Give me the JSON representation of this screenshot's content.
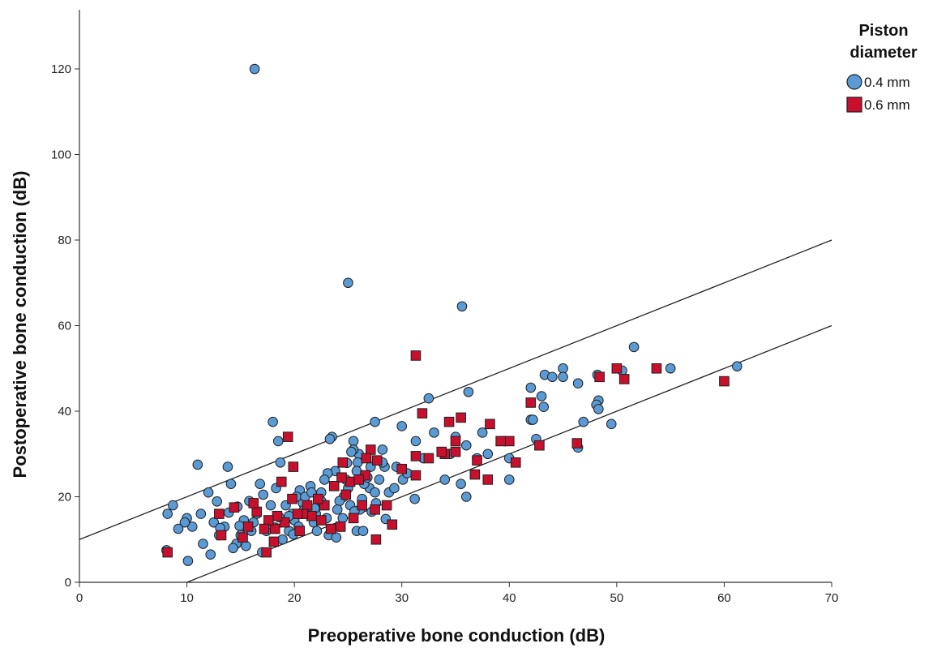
{
  "chart_data": {
    "type": "scatter",
    "title": "",
    "xlabel": "Preoperative bone conduction (dB)",
    "ylabel": "Postoperative bone conduction (dB)",
    "xlim": [
      0,
      70
    ],
    "ylim": [
      0,
      130
    ],
    "xticks": [
      0,
      10,
      20,
      30,
      40,
      50,
      60,
      70
    ],
    "yticks": [
      0,
      20,
      40,
      60,
      80,
      100,
      120
    ],
    "grid": false,
    "legend": {
      "title_line1": "Piston",
      "title_line2": "diameter",
      "placement": "top-right outside"
    },
    "reference_lines": [
      {
        "slope": 1,
        "intercept": 10,
        "from_x": 0,
        "to_x": 70
      },
      {
        "slope": 1,
        "intercept": -10,
        "from_x": 10,
        "to_x": 70
      }
    ],
    "series": [
      {
        "name": "0.4 mm",
        "marker": "circle",
        "color": "#5b9bd5",
        "stroke": "#1f1f1f",
        "points": [
          [
            16.3,
            120
          ],
          [
            25,
            70
          ],
          [
            35.6,
            64.5
          ],
          [
            51.6,
            55
          ],
          [
            55,
            50
          ],
          [
            61.2,
            50.5
          ],
          [
            48.2,
            48.5
          ],
          [
            50.5,
            49.5
          ],
          [
            45,
            50
          ],
          [
            45,
            48
          ],
          [
            43.3,
            48.5
          ],
          [
            44,
            48
          ],
          [
            46.4,
            46.5
          ],
          [
            48.3,
            42.5
          ],
          [
            48.1,
            41.5
          ],
          [
            48.3,
            40.5
          ],
          [
            49.5,
            37
          ],
          [
            46.9,
            37.5
          ],
          [
            42,
            45.5
          ],
          [
            43,
            43.5
          ],
          [
            42,
            38
          ],
          [
            42.2,
            38
          ],
          [
            43.2,
            41
          ],
          [
            42.5,
            33.5
          ],
          [
            46.4,
            31.5
          ],
          [
            36.2,
            44.5
          ],
          [
            32.5,
            43
          ],
          [
            37.5,
            35
          ],
          [
            35,
            34
          ],
          [
            34.5,
            30
          ],
          [
            36,
            32
          ],
          [
            40,
            29
          ],
          [
            39.5,
            33
          ],
          [
            40,
            24
          ],
          [
            38,
            30
          ],
          [
            36,
            20
          ],
          [
            37,
            29
          ],
          [
            35.5,
            23
          ],
          [
            34,
            24
          ],
          [
            33,
            35
          ],
          [
            32,
            29
          ],
          [
            31.3,
            33
          ],
          [
            31.2,
            19.5
          ],
          [
            30,
            36.5
          ],
          [
            30.1,
            24
          ],
          [
            30.5,
            25.5
          ],
          [
            29.5,
            27
          ],
          [
            28.2,
            31
          ],
          [
            27.5,
            37.5
          ],
          [
            28.4,
            27
          ],
          [
            27.9,
            24
          ],
          [
            27,
            22
          ],
          [
            27.5,
            21
          ],
          [
            26.5,
            23
          ],
          [
            26.3,
            19.5
          ],
          [
            26,
            30
          ],
          [
            25.9,
            28
          ],
          [
            25.8,
            26
          ],
          [
            25.5,
            33
          ],
          [
            25.5,
            31
          ],
          [
            25.3,
            30.5
          ],
          [
            25,
            22
          ],
          [
            24.8,
            24
          ],
          [
            24.6,
            20
          ],
          [
            24.2,
            19
          ],
          [
            23.8,
            26
          ],
          [
            23.5,
            34
          ],
          [
            23.3,
            33.5
          ],
          [
            23.1,
            25.5
          ],
          [
            22.8,
            24
          ],
          [
            22.5,
            21
          ],
          [
            22.3,
            18
          ],
          [
            22,
            16
          ],
          [
            21.8,
            14
          ],
          [
            21.5,
            22.5
          ],
          [
            21.2,
            17
          ],
          [
            20.8,
            18.5
          ],
          [
            20.5,
            21.5
          ],
          [
            20.2,
            20
          ],
          [
            20,
            14.5
          ],
          [
            19.8,
            16
          ],
          [
            19.5,
            12
          ],
          [
            19.2,
            18
          ],
          [
            18.9,
            10
          ],
          [
            18.7,
            28
          ],
          [
            18.5,
            33
          ],
          [
            18.3,
            22
          ],
          [
            18,
            37.5
          ],
          [
            17.8,
            18
          ],
          [
            17.4,
            12
          ],
          [
            17,
            7
          ],
          [
            16.8,
            23
          ],
          [
            16.5,
            16
          ],
          [
            16.2,
            14
          ],
          [
            15.8,
            19
          ],
          [
            15.5,
            8.5
          ],
          [
            15,
            11
          ],
          [
            14.6,
            9
          ],
          [
            14.3,
            8
          ],
          [
            14.1,
            23
          ],
          [
            13.8,
            27
          ],
          [
            13.5,
            13
          ],
          [
            13,
            11
          ],
          [
            12.5,
            14
          ],
          [
            12.2,
            6.5
          ],
          [
            12,
            21
          ],
          [
            11.5,
            9
          ],
          [
            11.3,
            16
          ],
          [
            11,
            27.5
          ],
          [
            10.5,
            13
          ],
          [
            10,
            15
          ],
          [
            10.1,
            5
          ],
          [
            9.8,
            14
          ],
          [
            9.2,
            12.5
          ],
          [
            8.7,
            18
          ],
          [
            8.2,
            16
          ],
          [
            8.1,
            7.5
          ],
          [
            23,
            15
          ],
          [
            24,
            17
          ],
          [
            25.2,
            18
          ],
          [
            26.1,
            17
          ],
          [
            27.2,
            16.5
          ],
          [
            28.5,
            14.8
          ],
          [
            22.1,
            12
          ],
          [
            21,
            20
          ],
          [
            23.2,
            11
          ],
          [
            24.2,
            13
          ],
          [
            19.5,
            15.5
          ],
          [
            20.4,
            13
          ],
          [
            28.8,
            21
          ],
          [
            29.3,
            22
          ],
          [
            25.8,
            12
          ],
          [
            24.5,
            15
          ],
          [
            22.5,
            19
          ],
          [
            21.6,
            21
          ],
          [
            26.8,
            24.5
          ],
          [
            27.6,
            18.5
          ],
          [
            26.4,
            12
          ],
          [
            23.9,
            10.5
          ],
          [
            27.1,
            27
          ],
          [
            28.2,
            28
          ],
          [
            21.9,
            17.3
          ],
          [
            20.9,
            16.9
          ],
          [
            18.6,
            15.2
          ],
          [
            17.1,
            20.5
          ],
          [
            17.6,
            13.6
          ],
          [
            16,
            12
          ],
          [
            15.3,
            14.5
          ],
          [
            14.9,
            13.2
          ],
          [
            14.7,
            17.7
          ],
          [
            13.9,
            16.3
          ],
          [
            13.1,
            12.7
          ],
          [
            12.8,
            18.9
          ],
          [
            18.2,
            12.8
          ],
          [
            19.9,
            11.2
          ],
          [
            24.9,
            27.9
          ],
          [
            25.6,
            16.6
          ]
        ]
      },
      {
        "name": "0.6 mm",
        "marker": "square",
        "color": "#c8102e",
        "stroke": "#1f1f1f",
        "points": [
          [
            31.3,
            53
          ],
          [
            60,
            47
          ],
          [
            53.7,
            50
          ],
          [
            50,
            50
          ],
          [
            50.7,
            47.5
          ],
          [
            48.4,
            48
          ],
          [
            42,
            42
          ],
          [
            42.8,
            32
          ],
          [
            46.3,
            32.5
          ],
          [
            40.6,
            28
          ],
          [
            40,
            33
          ],
          [
            39.2,
            33
          ],
          [
            38.2,
            37
          ],
          [
            38,
            24
          ],
          [
            37,
            28.5
          ],
          [
            36.8,
            25.2
          ],
          [
            35.5,
            38.5
          ],
          [
            35,
            33
          ],
          [
            35,
            30.5
          ],
          [
            34.4,
            37.5
          ],
          [
            34,
            30
          ],
          [
            33.7,
            30.5
          ],
          [
            32.5,
            29
          ],
          [
            31.9,
            39.5
          ],
          [
            31.3,
            29.5
          ],
          [
            31.3,
            25
          ],
          [
            30,
            26.5
          ],
          [
            29.1,
            13.5
          ],
          [
            28.6,
            18
          ],
          [
            27.7,
            28.5
          ],
          [
            27.6,
            10
          ],
          [
            27.5,
            17
          ],
          [
            27.1,
            31
          ],
          [
            26.7,
            29
          ],
          [
            26.6,
            25
          ],
          [
            26.3,
            18
          ],
          [
            25.2,
            23.5
          ],
          [
            24.8,
            20.5
          ],
          [
            24.5,
            28
          ],
          [
            24.4,
            24.5
          ],
          [
            24.3,
            13
          ],
          [
            23.7,
            22.5
          ],
          [
            23.4,
            12.5
          ],
          [
            22.8,
            18
          ],
          [
            22.5,
            14.5
          ],
          [
            22.2,
            19.5
          ],
          [
            21.6,
            15.5
          ],
          [
            21.2,
            18
          ],
          [
            20.8,
            16
          ],
          [
            20.5,
            12
          ],
          [
            20.3,
            16
          ],
          [
            19.9,
            27
          ],
          [
            19.8,
            19.5
          ],
          [
            19.4,
            34
          ],
          [
            19.1,
            14
          ],
          [
            18.8,
            23.5
          ],
          [
            18.4,
            15.5
          ],
          [
            18.2,
            12.5
          ],
          [
            18.1,
            9.5
          ],
          [
            17.6,
            14.5
          ],
          [
            17.4,
            7
          ],
          [
            17.2,
            12.5
          ],
          [
            16.5,
            16.5
          ],
          [
            16.2,
            18.5
          ],
          [
            15.7,
            13
          ],
          [
            15.2,
            10.5
          ],
          [
            14.4,
            17.5
          ],
          [
            13.2,
            11
          ],
          [
            13,
            16
          ],
          [
            8.2,
            7
          ],
          [
            25.5,
            15
          ],
          [
            26,
            24
          ]
        ]
      }
    ]
  }
}
